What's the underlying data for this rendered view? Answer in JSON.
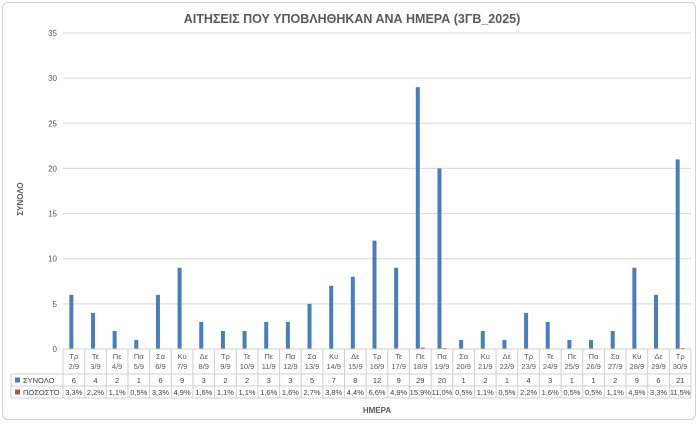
{
  "chart_data": {
    "type": "bar",
    "title": "ΑΙΤΗΣΕΙΣ ΠΟΥ ΥΠΟΒΛΗΘΗΚΑΝ ΑΝΑ ΗΜΕΡΑ (3ΓΒ_2025)",
    "xlabel": "ΗΜΕΡΑ",
    "ylabel": "ΣΥΝΟΛΟ",
    "ylim": [
      0,
      35
    ],
    "yticks": [
      0,
      5,
      10,
      15,
      20,
      25,
      30,
      35
    ],
    "grid": true,
    "legend": "data-table",
    "categories": [
      [
        "Τρ",
        "2/9"
      ],
      [
        "Τε",
        "3/9"
      ],
      [
        "Πε",
        "4/9"
      ],
      [
        "Πα",
        "5/9"
      ],
      [
        "Σα",
        "6/9"
      ],
      [
        "Κυ",
        "7/9"
      ],
      [
        "Δε",
        "8/9"
      ],
      [
        "Τρ",
        "9/9"
      ],
      [
        "Τε",
        "10/9"
      ],
      [
        "Πε",
        "11/9"
      ],
      [
        "Πα",
        "12/9"
      ],
      [
        "Σα",
        "13/9"
      ],
      [
        "Κυ",
        "14/9"
      ],
      [
        "Δε",
        "15/9"
      ],
      [
        "Τρ",
        "16/9"
      ],
      [
        "Τε",
        "17/9"
      ],
      [
        "Πε",
        "18/9"
      ],
      [
        "Πα",
        "19/9"
      ],
      [
        "Σα",
        "20/9"
      ],
      [
        "Κυ",
        "21/9"
      ],
      [
        "Δε",
        "22/9"
      ],
      [
        "Τρ",
        "23/9"
      ],
      [
        "Τε",
        "24/9"
      ],
      [
        "Πε",
        "25/9"
      ],
      [
        "Πα",
        "26/9"
      ],
      [
        "Σα",
        "27/9"
      ],
      [
        "Κυ",
        "28/9"
      ],
      [
        "Δε",
        "29/9"
      ],
      [
        "Τρ",
        "30/9"
      ]
    ],
    "series": [
      {
        "name": "ΣΥΝΟΛΟ",
        "color": "#4a7ebb",
        "values": [
          6,
          4,
          2,
          1,
          6,
          9,
          3,
          2,
          2,
          3,
          3,
          5,
          7,
          8,
          12,
          9,
          29,
          20,
          1,
          2,
          1,
          4,
          3,
          1,
          1,
          2,
          9,
          6,
          21
        ]
      },
      {
        "name": "ΠΟΣΟΣΤΟ",
        "color": "#c0504d",
        "values": [
          0.033,
          0.022,
          0.011,
          0.005,
          0.033,
          0.049,
          0.016,
          0.011,
          0.011,
          0.016,
          0.016,
          0.027,
          0.038,
          0.044,
          0.066,
          0.049,
          0.159,
          0.11,
          0.005,
          0.011,
          0.005,
          0.022,
          0.016,
          0.005,
          0.005,
          0.011,
          0.049,
          0.033,
          0.115
        ],
        "labels": [
          "3,3%",
          "2,2%",
          "1,1%",
          "0,5%",
          "3,3%",
          "4,9%",
          "1,6%",
          "1,1%",
          "1,1%",
          "1,6%",
          "1,6%",
          "2,7%",
          "3,8%",
          "4,4%",
          "6,6%",
          "4,9%",
          "15,9%",
          "11,0%",
          "0,5%",
          "1,1%",
          "0,5%",
          "2,2%",
          "1,6%",
          "0,5%",
          "0,5%",
          "1,1%",
          "4,9%",
          "3,3%",
          "11,5%"
        ]
      }
    ]
  }
}
